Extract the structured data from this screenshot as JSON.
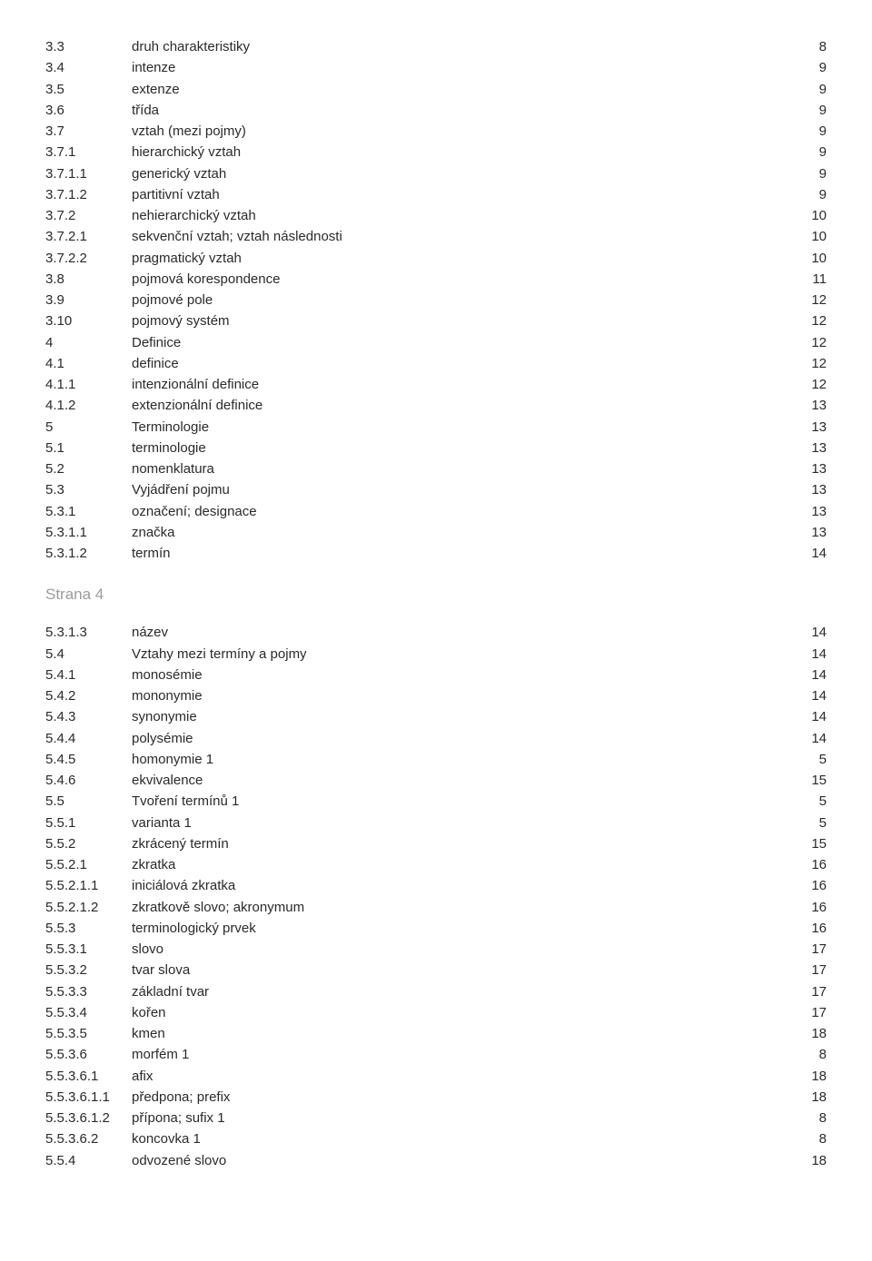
{
  "section1": [
    {
      "num": "3.3",
      "title": "druh charakteristiky",
      "page": "8"
    },
    {
      "num": "3.4",
      "title": "intenze",
      "page": "9"
    },
    {
      "num": "3.5",
      "title": "extenze",
      "page": "9"
    },
    {
      "num": "3.6",
      "title": "třída",
      "page": "9"
    },
    {
      "num": "3.7",
      "title": "vztah (mezi pojmy)",
      "page": "9"
    },
    {
      "num": "3.7.1",
      "title": "hierarchický vztah",
      "page": "9"
    },
    {
      "num": "3.7.1.1",
      "title": "generický vztah",
      "page": "9"
    },
    {
      "num": "3.7.1.2",
      "title": "partitivní vztah",
      "page": "9"
    },
    {
      "num": "3.7.2",
      "title": "nehierarchický vztah",
      "page": "10"
    },
    {
      "num": "3.7.2.1",
      "title": "sekvenční vztah; vztah následnosti",
      "page": "10"
    },
    {
      "num": "3.7.2.2",
      "title": "pragmatický vztah",
      "page": "10"
    },
    {
      "num": "3.8",
      "title": "pojmová korespondence",
      "page": "11"
    },
    {
      "num": "3.9",
      "title": "pojmové pole",
      "page": "12"
    },
    {
      "num": "3.10",
      "title": "pojmový systém",
      "page": "12"
    },
    {
      "num": "4",
      "title": "Definice",
      "page": "12"
    },
    {
      "num": "4.1",
      "title": "definice",
      "page": "12"
    },
    {
      "num": "4.1.1",
      "title": "intenzionální definice",
      "page": "12"
    },
    {
      "num": "4.1.2",
      "title": "extenzionální definice",
      "page": "13"
    },
    {
      "num": "5",
      "title": "Terminologie",
      "page": "13"
    },
    {
      "num": "5.1",
      "title": "terminologie",
      "page": "13"
    },
    {
      "num": "5.2",
      "title": "nomenklatura",
      "page": "13"
    },
    {
      "num": "5.3",
      "title": "Vyjádření pojmu",
      "page": "13"
    },
    {
      "num": "5.3.1",
      "title": "označení; designace",
      "page": "13"
    },
    {
      "num": "5.3.1.1",
      "title": "značka",
      "page": "13"
    },
    {
      "num": "5.3.1.2",
      "title": "termín",
      "page": "14"
    }
  ],
  "pageLabel": "Strana 4",
  "section2": [
    {
      "num": "5.3.1.3",
      "title": "název",
      "page": "14"
    },
    {
      "num": "5.4",
      "title": "Vztahy mezi termíny a pojmy",
      "page": "14"
    },
    {
      "num": "5.4.1",
      "title": "monosémie",
      "page": "14"
    },
    {
      "num": "5.4.2",
      "title": "mononymie",
      "page": "14"
    },
    {
      "num": "5.4.3",
      "title": "synonymie",
      "page": "14"
    },
    {
      "num": "5.4.4",
      "title": "polysémie",
      "page": "14"
    },
    {
      "num": "5.4.5",
      "title": "homonymie 1",
      "page": "5"
    },
    {
      "num": "5.4.6",
      "title": "ekvivalence",
      "page": "15"
    },
    {
      "num": "5.5",
      "title": "Tvoření termínů 1",
      "page": "5"
    },
    {
      "num": "5.5.1",
      "title": "varianta 1",
      "page": "5"
    },
    {
      "num": "5.5.2",
      "title": "zkrácený termín",
      "page": "15"
    },
    {
      "num": "5.5.2.1",
      "title": "zkratka",
      "page": "16"
    },
    {
      "num": "5.5.2.1.1",
      "title": "iniciálová zkratka",
      "page": "16"
    },
    {
      "num": "5.5.2.1.2",
      "title": "zkratkově slovo; akronymum",
      "page": "16"
    },
    {
      "num": "5.5.3",
      "title": "terminologický prvek",
      "page": "16"
    },
    {
      "num": "5.5.3.1",
      "title": "slovo",
      "page": "17"
    },
    {
      "num": "5.5.3.2",
      "title": "tvar slova",
      "page": "17"
    },
    {
      "num": "5.5.3.3",
      "title": "základní tvar",
      "page": "17"
    },
    {
      "num": "5.5.3.4",
      "title": "kořen",
      "page": "17"
    },
    {
      "num": "5.5.3.5",
      "title": "kmen",
      "page": "18"
    },
    {
      "num": "5.5.3.6",
      "title": "morfém 1",
      "page": "8"
    },
    {
      "num": "5.5.3.6.1",
      "title": "afix",
      "page": "18"
    },
    {
      "num": "5.5.3.6.1.1",
      "title": "předpona; prefix",
      "page": "18"
    },
    {
      "num": "5.5.3.6.1.2",
      "title": "přípona; sufix 1",
      "page": "8"
    },
    {
      "num": "5.5.3.6.2",
      "title": "koncovka 1",
      "page": "8"
    },
    {
      "num": "5.5.4",
      "title": "odvozené slovo",
      "page": "18"
    }
  ]
}
